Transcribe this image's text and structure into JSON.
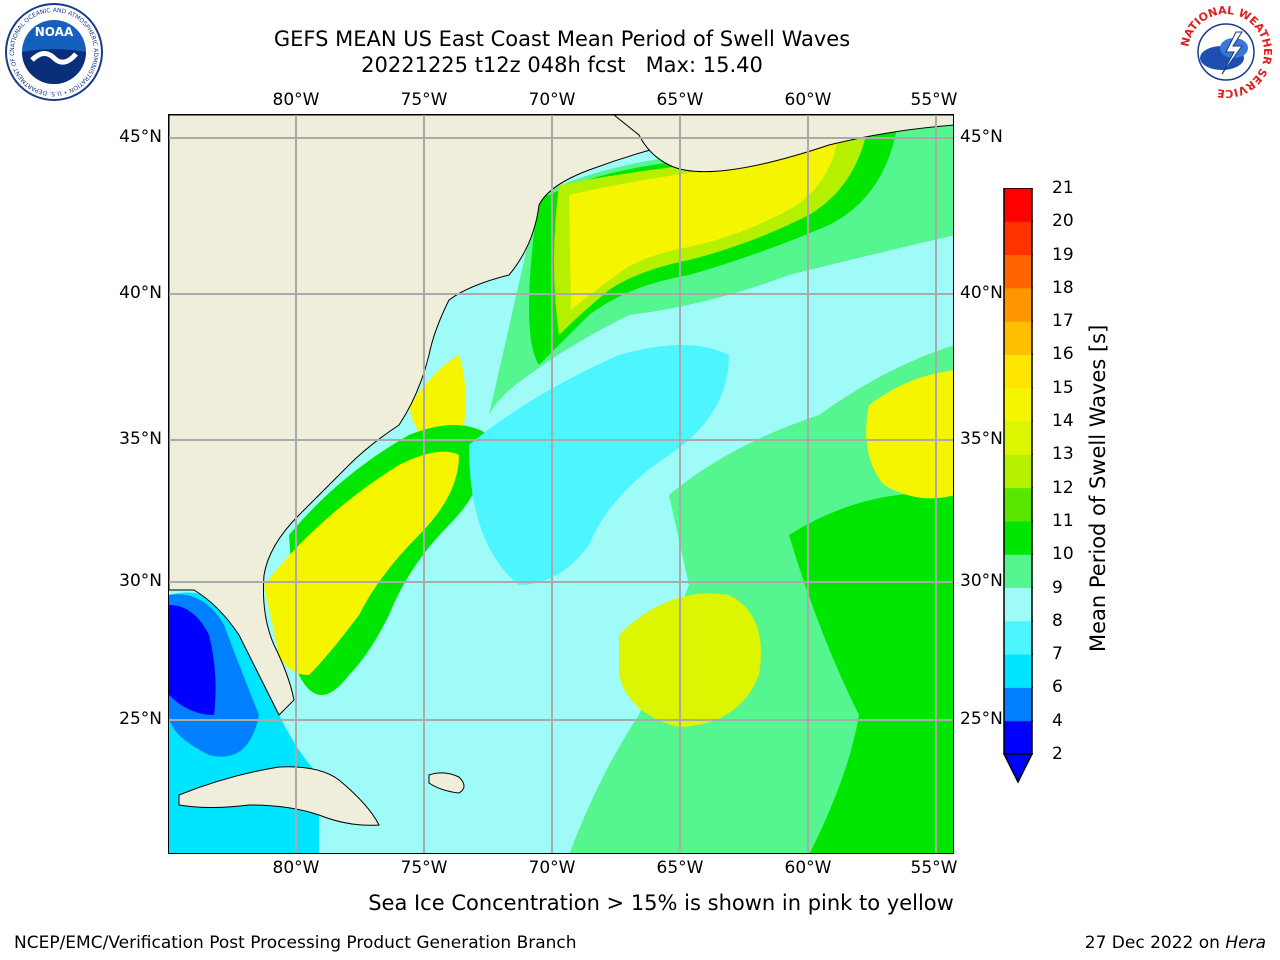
{
  "title": {
    "line1": "GEFS MEAN US East Coast Mean Period of Swell Waves",
    "line2": "20221225 t12z 048h fcst   Max: 15.40"
  },
  "map": {
    "lon_ticks": [
      "80°W",
      "75°W",
      "70°W",
      "65°W",
      "60°W",
      "55°W"
    ],
    "lat_ticks": [
      "45°N",
      "40°N",
      "35°N",
      "30°N",
      "25°N"
    ]
  },
  "colorbar": {
    "title": "Mean Period of Swell Waves [s]",
    "levels": [
      "2",
      "4",
      "6",
      "7",
      "8",
      "9",
      "10",
      "11",
      "12",
      "13",
      "14",
      "15",
      "16",
      "17",
      "18",
      "19",
      "20",
      "21"
    ],
    "colors": [
      "#0000ff",
      "#0080ff",
      "#00e5ff",
      "#4df5ff",
      "#9ffbf7",
      "#55f58f",
      "#00e600",
      "#5ae600",
      "#b4f000",
      "#dcf500",
      "#f5f500",
      "#ffe600",
      "#ffbe00",
      "#ff9600",
      "#ff6400",
      "#ff3200",
      "#ff0000"
    ],
    "extend_color": "#0000ff"
  },
  "colors": {
    "land": "#efeedb",
    "ocean_default": "#9ffbf7",
    "grid": "#aaaaaa"
  },
  "logos": {
    "noaa_text": "NOAA",
    "noaa_ring": "NATIONAL OCEANIC AND ATMOSPHERIC ADMINISTRATION • U.S. DEPARTMENT OF COMMERCE",
    "nws_ring": "NATIONAL WEATHER SERVICE"
  },
  "notes": {
    "sea_ice": "Sea Ice Concentration > 15% is shown in pink to yellow"
  },
  "footer": {
    "left": "NCEP/EMC/Verification Post Processing Product Generation Branch",
    "right_date": "27 Dec 2022 on ",
    "right_host": "Hera"
  }
}
